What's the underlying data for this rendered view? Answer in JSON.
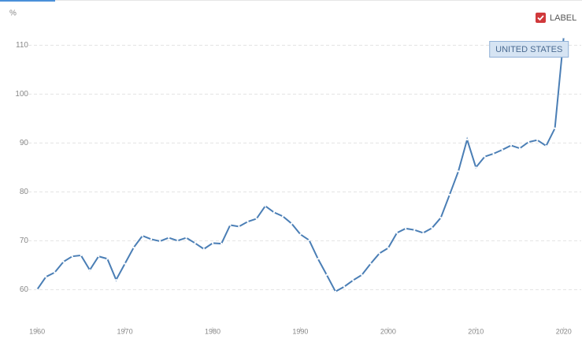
{
  "chart_data": {
    "type": "line",
    "unit": "%",
    "legend_label": "LABEL",
    "tooltip": "UNITED STATES",
    "x": [
      1960,
      1961,
      1962,
      1963,
      1964,
      1965,
      1966,
      1967,
      1968,
      1969,
      1970,
      1971,
      1972,
      1973,
      1974,
      1975,
      1976,
      1977,
      1978,
      1979,
      1980,
      1981,
      1982,
      1983,
      1984,
      1985,
      1986,
      1987,
      1988,
      1989,
      1990,
      1991,
      1992,
      1993,
      1994,
      1995,
      1996,
      1997,
      1998,
      1999,
      2000,
      2001,
      2002,
      2003,
      2004,
      2005,
      2006,
      2007,
      2008,
      2009,
      2010,
      2011,
      2012,
      2013,
      2014,
      2015,
      2016,
      2017,
      2018,
      2019,
      2020
    ],
    "series": [
      {
        "name": "UNITED STATES",
        "color": "#4a7eb5",
        "values": [
          60.0,
          62.6,
          63.5,
          65.7,
          66.8,
          67.0,
          64.0,
          66.8,
          66.3,
          62.0,
          65.3,
          68.6,
          71.0,
          70.3,
          69.9,
          70.6,
          70.0,
          70.6,
          69.5,
          68.3,
          69.5,
          69.4,
          73.2,
          72.9,
          73.9,
          74.5,
          77.1,
          75.8,
          75.0,
          73.5,
          71.3,
          70.1,
          66.3,
          63.0,
          59.6,
          60.6,
          61.9,
          63.0,
          65.3,
          67.4,
          68.5,
          71.6,
          72.5,
          72.2,
          71.6,
          72.6,
          74.7,
          79.4,
          84.2,
          90.7,
          85.0,
          87.2,
          87.8,
          88.6,
          89.5,
          88.9,
          90.2,
          90.6,
          89.4,
          93.0,
          111.6
        ]
      }
    ],
    "xlim": [
      1959,
      2022
    ],
    "xticks": [
      1960,
      1970,
      1980,
      1990,
      2000,
      2010,
      2020
    ],
    "ylim": [
      51.5,
      117
    ],
    "yticks": [
      60,
      70,
      80,
      90,
      100,
      110
    ],
    "grid": true
  }
}
